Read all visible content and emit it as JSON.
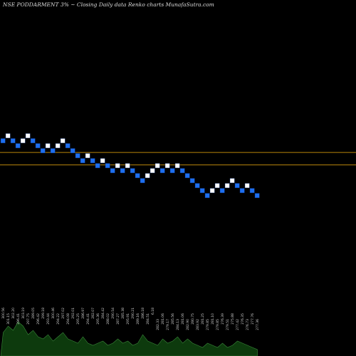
{
  "header": {
    "title": "NSE PODDARMENT 3% ~  Closing Daily data  Renko  charts MunafaSutra.com"
  },
  "colors": {
    "background": "#000000",
    "up_brick": "#ffffff",
    "down_brick": "#1e6ff0",
    "brick_border": "#0a2a6a",
    "level_line": "#b8860b",
    "volume_area": "#0d3a0d",
    "volume_line": "#3b8a3b"
  },
  "chart_data": {
    "type": "renko",
    "brick_size_percent": 3,
    "bricks": [
      {
        "level": 8,
        "dir": "down"
      },
      {
        "level": 9,
        "dir": "up"
      },
      {
        "level": 8,
        "dir": "down"
      },
      {
        "level": 7,
        "dir": "down"
      },
      {
        "level": 8,
        "dir": "up"
      },
      {
        "level": 9,
        "dir": "up"
      },
      {
        "level": 8,
        "dir": "down"
      },
      {
        "level": 7,
        "dir": "down"
      },
      {
        "level": 6,
        "dir": "down"
      },
      {
        "level": 7,
        "dir": "up"
      },
      {
        "level": 6,
        "dir": "down"
      },
      {
        "level": 7,
        "dir": "up"
      },
      {
        "level": 8,
        "dir": "up"
      },
      {
        "level": 7,
        "dir": "down"
      },
      {
        "level": 6,
        "dir": "down"
      },
      {
        "level": 5,
        "dir": "down"
      },
      {
        "level": 4,
        "dir": "down"
      },
      {
        "level": 5,
        "dir": "up"
      },
      {
        "level": 4,
        "dir": "down"
      },
      {
        "level": 3,
        "dir": "down"
      },
      {
        "level": 4,
        "dir": "up"
      },
      {
        "level": 3,
        "dir": "down"
      },
      {
        "level": 2,
        "dir": "down"
      },
      {
        "level": 3,
        "dir": "up"
      },
      {
        "level": 2,
        "dir": "down"
      },
      {
        "level": 3,
        "dir": "up"
      },
      {
        "level": 2,
        "dir": "down"
      },
      {
        "level": 1,
        "dir": "down"
      },
      {
        "level": 0,
        "dir": "down"
      },
      {
        "level": 1,
        "dir": "up"
      },
      {
        "level": 2,
        "dir": "up"
      },
      {
        "level": 3,
        "dir": "up"
      },
      {
        "level": 2,
        "dir": "down"
      },
      {
        "level": 3,
        "dir": "up"
      },
      {
        "level": 2,
        "dir": "down"
      },
      {
        "level": 3,
        "dir": "up"
      },
      {
        "level": 2,
        "dir": "down"
      },
      {
        "level": 1,
        "dir": "down"
      },
      {
        "level": 0,
        "dir": "down"
      },
      {
        "level": -1,
        "dir": "down"
      },
      {
        "level": -2,
        "dir": "down"
      },
      {
        "level": -3,
        "dir": "down"
      },
      {
        "level": -2,
        "dir": "up"
      },
      {
        "level": -1,
        "dir": "up"
      },
      {
        "level": -2,
        "dir": "down"
      },
      {
        "level": -1,
        "dir": "up"
      },
      {
        "level": 0,
        "dir": "up"
      },
      {
        "level": -1,
        "dir": "down"
      },
      {
        "level": -2,
        "dir": "down"
      },
      {
        "level": -1,
        "dir": "up"
      },
      {
        "level": -2,
        "dir": "down"
      },
      {
        "level": -3,
        "dir": "down"
      }
    ],
    "level_lines": [
      5.7,
      3.2
    ],
    "volume_labels": [
      "300.56",
      "301.15",
      "302.20",
      "296.41",
      "303.19",
      "297.75",
      "289.05",
      "296.42",
      "299.18",
      "293.44",
      "300.46",
      "294.22",
      "297.02",
      "294.08",
      "292.01",
      "295.25",
      "286.97",
      "294.41",
      "282.07",
      "295.36",
      "284.42",
      "288.02",
      "290.54",
      "287.27",
      "285.38",
      "295.91",
      "290.21",
      "289.16",
      "286.18",
      "284.51",
      "6.18",
      "282.33",
      "281.06",
      "279.17",
      "285.56",
      "284.13",
      "281.06",
      "282.90",
      "280.75",
      "283.92",
      "281.25",
      "279.85",
      "281.10",
      "279.85",
      "276.39",
      "279.51",
      "275.88",
      "277.42",
      "276.35",
      "276.73",
      "277.76",
      "277.36"
    ],
    "volume_values": [
      0.55,
      0.7,
      0.6,
      0.8,
      0.7,
      0.5,
      0.6,
      0.45,
      0.4,
      0.5,
      0.35,
      0.45,
      0.55,
      0.4,
      0.35,
      0.3,
      0.45,
      0.3,
      0.25,
      0.3,
      0.35,
      0.25,
      0.3,
      0.4,
      0.3,
      0.35,
      0.25,
      0.3,
      0.5,
      0.35,
      0.3,
      0.25,
      0.4,
      0.3,
      0.35,
      0.45,
      0.3,
      0.4,
      0.3,
      0.25,
      0.2,
      0.3,
      0.25,
      0.2,
      0.3,
      0.2,
      0.25,
      0.35,
      0.3,
      0.25,
      0.2,
      0.15
    ]
  }
}
